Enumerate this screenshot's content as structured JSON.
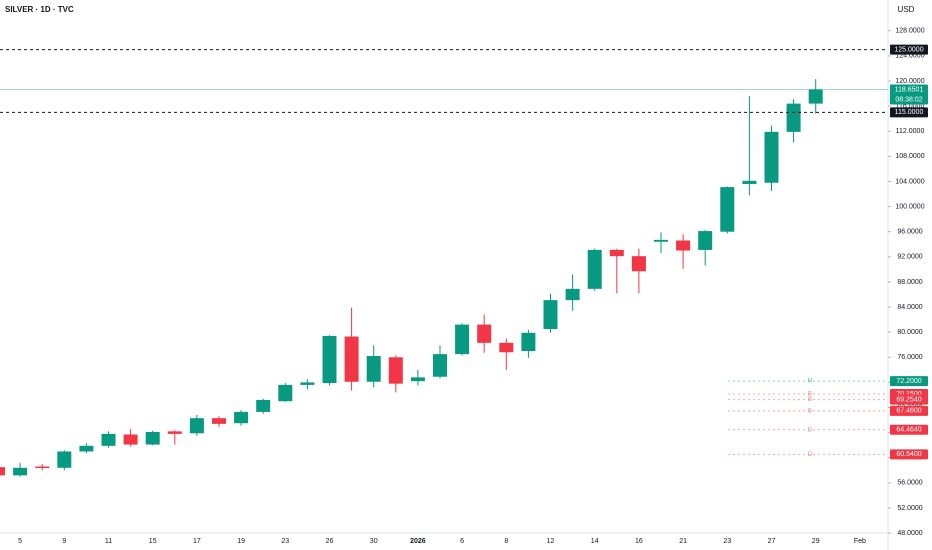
{
  "chart_data": {
    "type": "candlestick",
    "title": "SILVER · 1D · TVC",
    "currency": "USD",
    "up_color": "#089981",
    "down_color": "#f23645",
    "categories": [
      null,
      "5",
      null,
      "9",
      null,
      "11",
      null,
      "15",
      null,
      "17",
      null,
      "19",
      null,
      "23",
      null,
      "26",
      null,
      "30",
      null,
      "2026",
      null,
      "6",
      null,
      "8",
      null,
      "12",
      null,
      "14",
      null,
      "16",
      null,
      "21",
      null,
      "23",
      null,
      "27",
      null,
      "29",
      null,
      "Feb"
    ],
    "open": [
      58.5,
      57.2,
      58.6,
      58.4,
      61.0,
      61.9,
      63.7,
      62.1,
      64.2,
      63.9,
      66.3,
      65.5,
      67.3,
      69.0,
      71.6,
      71.9,
      79.3,
      72.1,
      76.0,
      72.2,
      72.9,
      76.5,
      81.2,
      78.3,
      77.0,
      80.5,
      85.1,
      86.9,
      93.1,
      92.1,
      94.4,
      94.6,
      93.1,
      96.0,
      103.6,
      103.8,
      111.9,
      116.4,
      null,
      null
    ],
    "high": [
      58.8,
      59.2,
      59.0,
      61.2,
      62.3,
      64.2,
      64.6,
      64.3,
      64.4,
      66.8,
      66.6,
      67.6,
      69.4,
      71.9,
      72.5,
      79.5,
      83.9,
      77.9,
      76.3,
      74.0,
      77.9,
      81.4,
      82.8,
      79.0,
      80.4,
      86.1,
      89.2,
      93.3,
      93.3,
      93.3,
      95.9,
      95.6,
      96.3,
      103.2,
      117.6,
      112.9,
      117.1,
      120.3,
      null,
      null
    ],
    "low": [
      57.0,
      57.0,
      58.0,
      58.0,
      60.7,
      61.6,
      61.8,
      62.0,
      62.1,
      63.5,
      64.9,
      65.1,
      67.0,
      68.9,
      70.9,
      71.5,
      70.7,
      71.2,
      70.4,
      71.5,
      72.6,
      76.3,
      76.7,
      74.0,
      75.9,
      79.9,
      83.4,
      86.6,
      86.2,
      86.2,
      92.6,
      90.1,
      90.6,
      95.7,
      101.8,
      102.5,
      110.2,
      114.8,
      null,
      null
    ],
    "close": [
      57.2,
      58.4,
      58.4,
      61.0,
      61.9,
      63.8,
      62.1,
      64.1,
      63.8,
      66.3,
      65.4,
      67.3,
      69.2,
      71.6,
      72.0,
      79.4,
      72.1,
      76.2,
      71.8,
      72.8,
      76.5,
      81.2,
      78.3,
      76.8,
      79.9,
      85.1,
      86.9,
      93.1,
      92.1,
      89.7,
      94.7,
      93.0,
      96.1,
      103.1,
      104.1,
      111.9,
      116.4,
      118.6501,
      null,
      null
    ],
    "ylim": [
      46.9,
      132.9
    ],
    "yticks": [
      {
        "value": 48,
        "label": "48.0000"
      },
      {
        "value": 52,
        "label": "52.0000"
      },
      {
        "value": 56,
        "label": "56.0000"
      },
      {
        "value": 60,
        "label": "60.0000"
      },
      {
        "value": 64,
        "label": "64.0000"
      },
      {
        "value": 68,
        "label": "68.0000"
      },
      {
        "value": 72,
        "label": "72.0000"
      },
      {
        "value": 76,
        "label": "76.0000"
      },
      {
        "value": 80,
        "label": "80.0000"
      },
      {
        "value": 84,
        "label": "84.0000"
      },
      {
        "value": 88,
        "label": "88.0000"
      },
      {
        "value": 92,
        "label": "92.0000"
      },
      {
        "value": 96,
        "label": "96.0000"
      },
      {
        "value": 100,
        "label": "100.0000"
      },
      {
        "value": 104,
        "label": "104.0000"
      },
      {
        "value": 108,
        "label": "108.0000"
      },
      {
        "value": 112,
        "label": "112.0000"
      },
      {
        "value": 116,
        "label": "116.0000"
      },
      {
        "value": 120,
        "label": "120.0000"
      },
      {
        "value": 124,
        "label": "124.0000"
      },
      {
        "value": 128,
        "label": "128.0000"
      }
    ],
    "horizontal_lines": [
      {
        "value": 125,
        "label": "125.0000"
      },
      {
        "value": 115,
        "label": "115.0000"
      }
    ],
    "last_price": {
      "value": 118.6501,
      "label": "118.6501",
      "countdown": "08:38:02"
    },
    "levels": [
      {
        "value": 72.2,
        "label": "72.2000",
        "tag": "M",
        "color": "#089981"
      },
      {
        "value": 70.15,
        "label": "70.1500",
        "tag": "B",
        "color": "#f23645"
      },
      {
        "value": 69.254,
        "label": "69.2540",
        "tag": "B",
        "color": "#f23645"
      },
      {
        "value": 67.46,
        "label": "67.4600",
        "tag": "B",
        "color": "#f23645"
      },
      {
        "value": 64.464,
        "label": "64.4640",
        "tag": "D",
        "color": "#f23645"
      },
      {
        "value": 60.54,
        "label": "60.5400",
        "tag": "D",
        "color": "#f23645"
      }
    ]
  }
}
